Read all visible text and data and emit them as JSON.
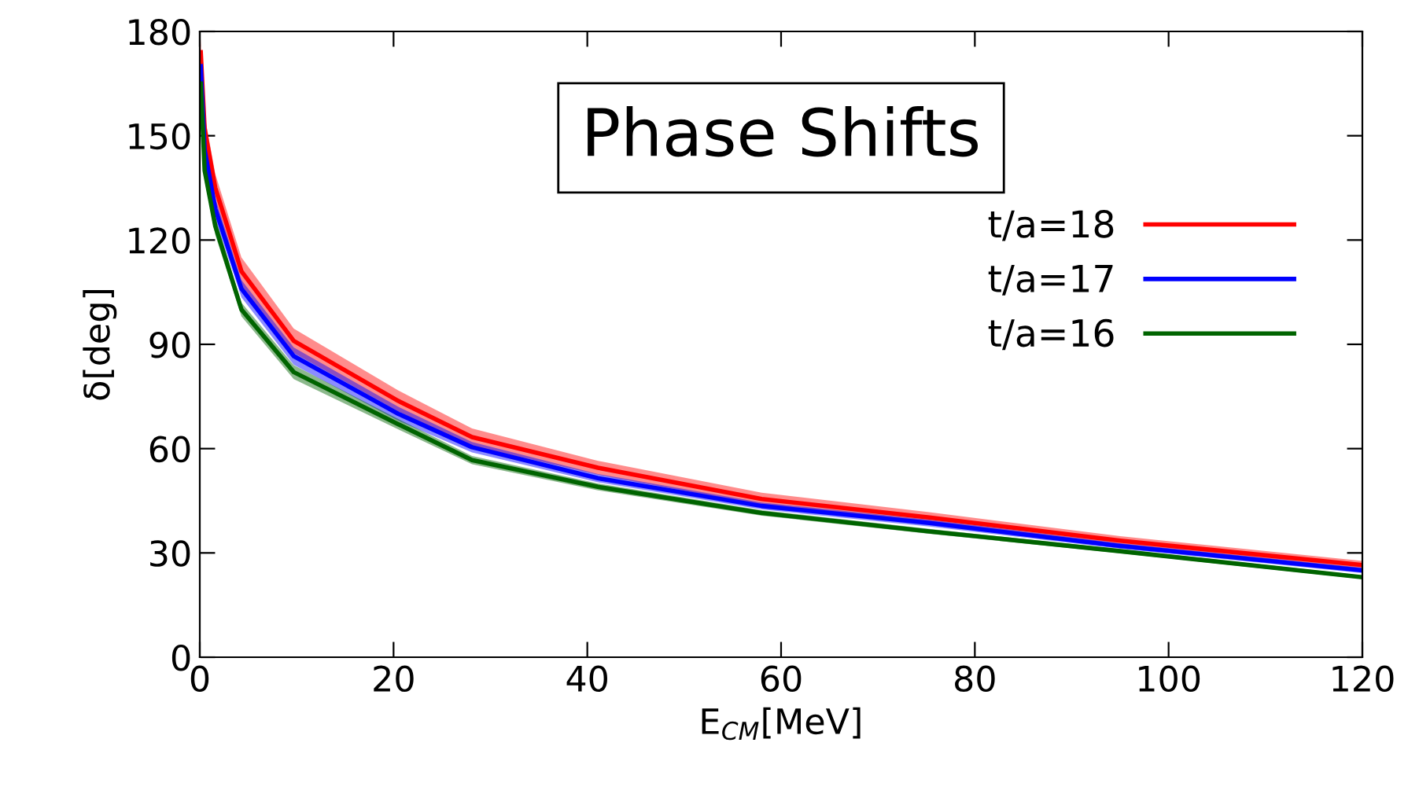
{
  "chart_data": {
    "type": "line",
    "title": "Phase Shifts",
    "xlabel": "E$_{CM}$[MeV]",
    "ylabel": "δ[deg]",
    "xlim": [
      0,
      120
    ],
    "xticks": [
      0,
      20,
      40,
      60,
      80,
      100,
      120
    ],
    "ylim": [
      0,
      180
    ],
    "yticks": [
      0,
      30,
      60,
      90,
      120,
      150,
      180
    ],
    "grid": false,
    "legend": "right",
    "series": [
      {
        "name": "t/a=18",
        "color": "#ff0000",
        "x": [
          0.1,
          0.5,
          1.6,
          4.3,
          9.7,
          20.5,
          28.1,
          41.1,
          58,
          75.3,
          95,
          120
        ],
        "values": [
          174,
          152,
          135,
          111,
          91,
          73.7,
          63.3,
          54.5,
          45.5,
          40.2,
          33.5,
          26.5
        ],
        "lower": [
          170,
          148,
          131,
          107,
          87.5,
          70.7,
          60.8,
          52.5,
          43.7,
          38.7,
          32.2,
          25.3
        ],
        "upper": [
          178,
          156,
          139,
          115,
          94.5,
          76.7,
          65.8,
          56.5,
          47.3,
          41.7,
          34.8,
          27.7
        ]
      },
      {
        "name": "t/a=17",
        "color": "#0000ff",
        "x": [
          0.1,
          0.5,
          1.6,
          4.3,
          9.7,
          20.5,
          28.1,
          41.1,
          58,
          75.3,
          95,
          120
        ],
        "values": [
          170,
          146,
          129,
          106,
          86.6,
          70,
          60.4,
          51.5,
          43.5,
          38.6,
          32,
          25
        ],
        "lower": [
          167,
          143,
          126,
          103.5,
          84.1,
          68,
          58.9,
          50.3,
          42.5,
          37.6,
          31.2,
          24.2
        ],
        "upper": [
          173,
          149,
          132,
          108.5,
          89.1,
          72,
          61.9,
          52.7,
          44.5,
          39.6,
          32.8,
          25.8
        ]
      },
      {
        "name": "t/a=16",
        "color": "#006400",
        "x": [
          0.1,
          0.5,
          1.6,
          4.3,
          9.7,
          20.5,
          28.1,
          41.1,
          58,
          75.3,
          95,
          120
        ],
        "values": [
          165,
          140,
          124,
          100,
          82,
          67,
          56.7,
          49,
          41.5,
          36.2,
          30.5,
          23
        ],
        "lower": [
          162.5,
          137.5,
          121.5,
          98,
          80,
          65.5,
          55.5,
          48,
          40.7,
          35.5,
          29.9,
          22.5
        ],
        "upper": [
          167.5,
          142.5,
          126.5,
          102,
          84,
          68.5,
          57.9,
          50,
          42.3,
          36.9,
          31.1,
          23.5
        ]
      }
    ]
  }
}
